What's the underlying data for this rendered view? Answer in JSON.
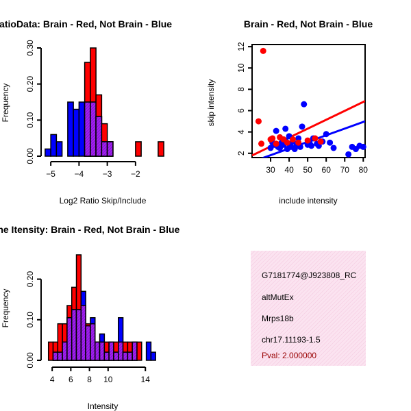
{
  "colors": {
    "brain": "#ff0000",
    "not_brain": "#0000ff",
    "overlap": "#a020f0",
    "info_bg": "#fbe3f0",
    "pval": "#990000"
  },
  "chart_data": [
    {
      "id": "ratio",
      "type": "bar",
      "title": "RatioData: Brain - Red, Not Brain - Blue",
      "xlabel": "Log2 Ratio Skip/Include",
      "ylabel": "Frequency",
      "xlim": [
        -5.1,
        -1.1
      ],
      "ylim": [
        0,
        0.3
      ],
      "xticks": [
        -5,
        -4,
        -3,
        -2
      ],
      "xtick_labels": [
        "−5",
        "−4",
        "−3",
        "−2"
      ],
      "yticks": [
        0.0,
        0.1,
        0.2,
        0.3
      ],
      "ytick_labels": [
        "0.00",
        "0.10",
        "0.20",
        "0.30"
      ],
      "bin_width": 0.2,
      "bin_starts": [
        -5.2,
        -5.0,
        -4.8,
        -4.6,
        -4.4,
        -4.2,
        -4.0,
        -3.8,
        -3.6,
        -3.4,
        -3.2,
        -3.0,
        -2.8,
        -2.6,
        -2.4,
        -2.2,
        -2.0,
        -1.8,
        -1.6,
        -1.4,
        -1.2
      ],
      "series": [
        {
          "name": "Brain",
          "values": [
            0,
            0,
            0,
            0,
            0,
            0,
            0,
            0.26,
            0.3,
            0.17,
            0.09,
            0.04,
            0,
            0,
            0,
            0,
            0.04,
            0,
            0,
            0,
            0.04
          ]
        },
        {
          "name": "Not Brain",
          "values": [
            0.02,
            0.06,
            0.04,
            0,
            0.15,
            0.13,
            0.15,
            0.15,
            0.15,
            0.11,
            0.04,
            0.04,
            0,
            0,
            0,
            0,
            0,
            0,
            0,
            0,
            0
          ]
        }
      ]
    },
    {
      "id": "scatter",
      "type": "scatter",
      "title": "Brain - Red, Not Brain - Blue",
      "xlabel": "include intensity",
      "ylabel": "skip intensity",
      "xlim": [
        20,
        81
      ],
      "ylim": [
        1.6,
        12.2
      ],
      "xticks": [
        30,
        40,
        50,
        60,
        70,
        80
      ],
      "xtick_labels": [
        "30",
        "40",
        "50",
        "60",
        "70",
        "80"
      ],
      "yticks": [
        2,
        4,
        6,
        8,
        10,
        12
      ],
      "ytick_labels": [
        "2",
        "4",
        "6",
        "8",
        "10",
        "12"
      ],
      "series": [
        {
          "name": "Brain",
          "points": [
            [
              26,
              11.6
            ],
            [
              23.5,
              5.0
            ],
            [
              25,
              2.9
            ],
            [
              30,
              3.3
            ],
            [
              31,
              3.4
            ],
            [
              33,
              2.9
            ],
            [
              35,
              3.5
            ],
            [
              37,
              3.3
            ],
            [
              39,
              3.0
            ],
            [
              42,
              3.3
            ],
            [
              45,
              3.0
            ],
            [
              50,
              3.2
            ],
            [
              54,
              3.4
            ],
            [
              57,
              3.1
            ]
          ]
        },
        {
          "name": "Not Brain",
          "points": [
            [
              30,
              2.5
            ],
            [
              31,
              3.0
            ],
            [
              32,
              2.8
            ],
            [
              33,
              4.1
            ],
            [
              34,
              2.6
            ],
            [
              35,
              2.5
            ],
            [
              36,
              3.0
            ],
            [
              37,
              2.8
            ],
            [
              38,
              4.3
            ],
            [
              38,
              3.2
            ],
            [
              39,
              2.4
            ],
            [
              40,
              2.9
            ],
            [
              40,
              3.6
            ],
            [
              41,
              2.6
            ],
            [
              42,
              3.1
            ],
            [
              43,
              2.4
            ],
            [
              44,
              2.7
            ],
            [
              45,
              3.4
            ],
            [
              46,
              2.6
            ],
            [
              47,
              4.5
            ],
            [
              48,
              6.6
            ],
            [
              50,
              2.8
            ],
            [
              51,
              3.0
            ],
            [
              52,
              2.7
            ],
            [
              53,
              3.4
            ],
            [
              55,
              2.9
            ],
            [
              56,
              2.7
            ],
            [
              58,
              3.1
            ],
            [
              60,
              3.8
            ],
            [
              62,
              3.0
            ],
            [
              64,
              2.5
            ],
            [
              72,
              1.9
            ],
            [
              74,
              2.6
            ],
            [
              76,
              2.4
            ],
            [
              78,
              2.7
            ],
            [
              80,
              2.6
            ]
          ]
        }
      ],
      "fit_lines": [
        {
          "name": "Brain",
          "from": [
            20,
            1.8
          ],
          "to": [
            81,
            6.9
          ]
        },
        {
          "name": "Not Brain",
          "from": [
            20,
            1.2
          ],
          "to": [
            81,
            5.0
          ]
        }
      ]
    },
    {
      "id": "intensity",
      "type": "bar",
      "title": "Gene Itensity: Brain - Red, Not Brain - Blue",
      "xlabel": "Intensity",
      "ylabel": "Frequency",
      "xlim": [
        3.4,
        15.6
      ],
      "ylim": [
        0,
        0.26
      ],
      "xticks": [
        4,
        6,
        8,
        10,
        14
      ],
      "xtick_labels": [
        "4",
        "6",
        "8",
        "10",
        "14"
      ],
      "yticks": [
        0.0,
        0.1,
        0.2
      ],
      "ytick_labels": [
        "0.00",
        "0.10",
        "0.20"
      ],
      "bin_width": 0.5,
      "bin_starts": [
        3.6,
        4.1,
        4.6,
        5.1,
        5.6,
        6.1,
        6.6,
        7.1,
        7.6,
        8.1,
        8.6,
        9.1,
        9.6,
        10.1,
        10.6,
        11.1,
        11.6,
        12.1,
        12.6,
        13.1,
        13.6,
        14.1,
        14.6,
        15.1
      ],
      "series": [
        {
          "name": "Brain",
          "values": [
            0.045,
            0.045,
            0.09,
            0.09,
            0.135,
            0.18,
            0.26,
            0.135,
            0.09,
            0.09,
            0.045,
            0.045,
            0.045,
            0.045,
            0.045,
            0.045,
            0.045,
            0.045,
            0.045,
            0.045,
            0,
            0,
            0,
            0
          ]
        },
        {
          "name": "Not Brain",
          "values": [
            0,
            0.02,
            0.02,
            0.045,
            0.105,
            0.125,
            0.125,
            0.17,
            0.085,
            0.105,
            0.045,
            0.065,
            0.02,
            0.045,
            0.02,
            0.105,
            0.02,
            0.02,
            0.045,
            0,
            0,
            0.045,
            0.02,
            0
          ]
        }
      ]
    }
  ],
  "info": {
    "line1": "G7181774@J923808_RC",
    "line2": "altMutEx",
    "line3": "Mrps18b",
    "line4": "chr17.11193-1.5",
    "pval": "Pval: 2.000000"
  }
}
